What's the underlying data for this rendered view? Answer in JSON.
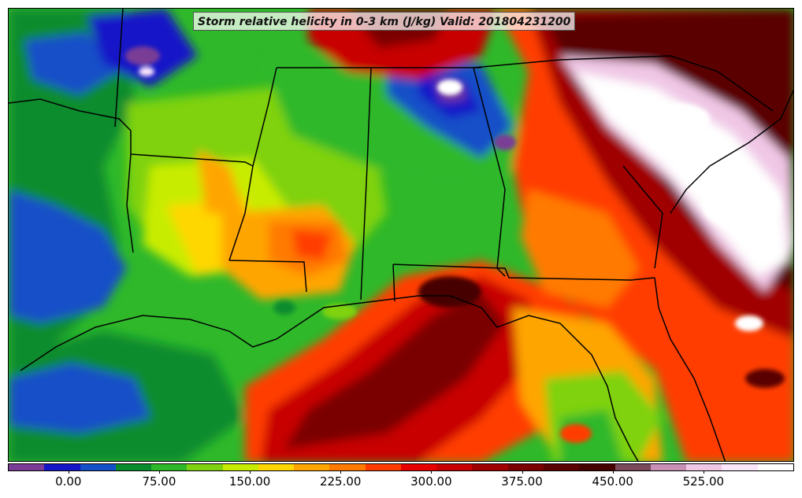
{
  "title": "Storm relative helicity in 0-3 km (J/kg) Valid: 201804231200",
  "colorbar": {
    "colors": [
      "#7a3c96",
      "#1414c8",
      "#1450c8",
      "#0a8c2e",
      "#2fb82a",
      "#7fd210",
      "#c8ec00",
      "#ffd700",
      "#ffa500",
      "#ff7a00",
      "#ff3c00",
      "#e60000",
      "#c80000",
      "#a00000",
      "#7a0000",
      "#5a0000",
      "#470000",
      "#7a4a5a",
      "#c890b4",
      "#f0c8e6",
      "#fae6fa",
      "#ffffff"
    ],
    "ticks": [
      {
        "label": "0.00",
        "value": 0
      },
      {
        "label": "75.00",
        "value": 75
      },
      {
        "label": "150.00",
        "value": 150
      },
      {
        "label": "225.00",
        "value": 225
      },
      {
        "label": "300.00",
        "value": 300
      },
      {
        "label": "375.00",
        "value": 375
      },
      {
        "label": "450.00",
        "value": 450
      },
      {
        "label": "525.00",
        "value": 525
      }
    ],
    "range": [
      -50,
      600
    ]
  }
}
